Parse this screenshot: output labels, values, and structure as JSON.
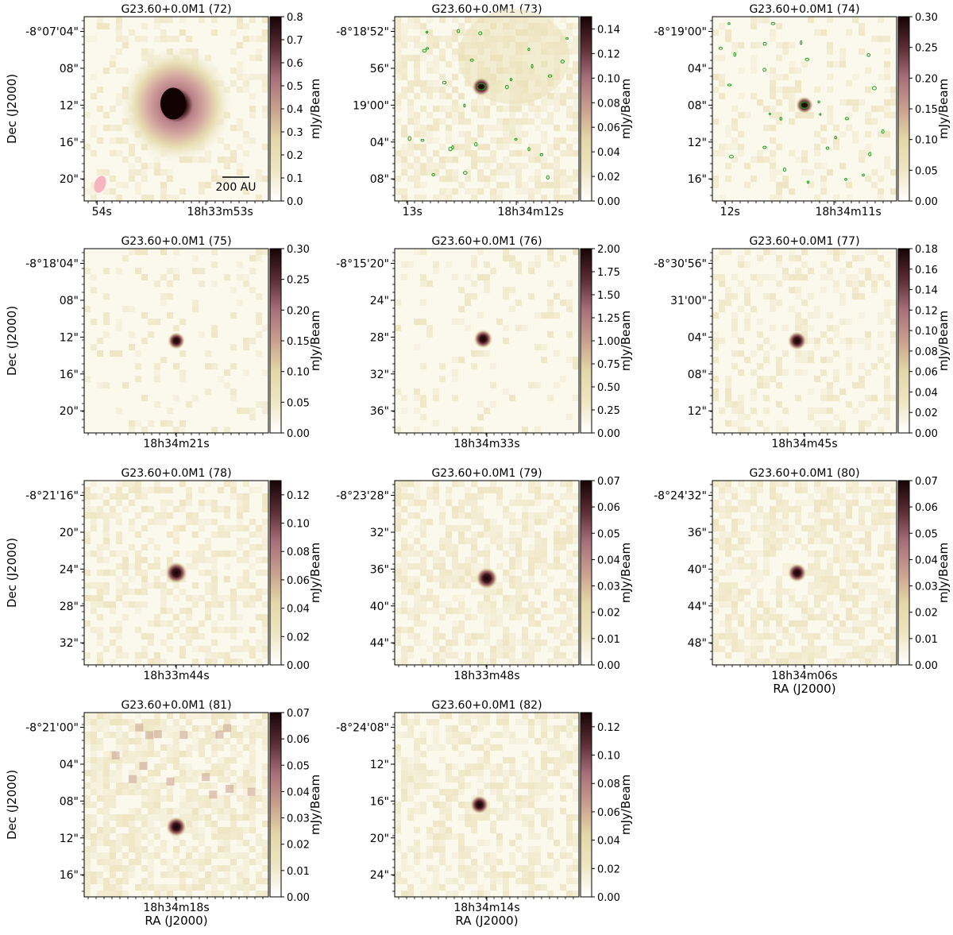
{
  "figure": {
    "colormap": {
      "stops": [
        "#ffffff",
        "#eee6c3",
        "#e4d8a8",
        "#c9a08e",
        "#a8707a",
        "#5a2c34",
        "#170404"
      ]
    },
    "contour_color": "#1a9a1a",
    "beam_color": "#f6b3c0"
  },
  "chart_data": [
    {
      "type": "heatmap",
      "title": "G23.60+0.0M1 (72)",
      "cbar_label": "mJy/Beam",
      "cbar_ticks": [
        "0.0",
        "0.1",
        "0.2",
        "0.3",
        "0.4",
        "0.5",
        "0.6",
        "0.7",
        "0.8"
      ],
      "cbar_max": 0.8,
      "ylabel": "Dec (J2000)",
      "xlabel": "",
      "ytick_labels": [
        "-8°07'04\"",
        "08\"",
        "12\"",
        "16\"",
        "20\""
      ],
      "xtick_labels": [
        "54s",
        "18h33m53s"
      ],
      "source": {
        "peak": 0.8,
        "extended": true
      },
      "scalebar": "200 AU",
      "beam": true,
      "contours": false
    },
    {
      "type": "heatmap",
      "title": "G23.60+0.0M1 (73)",
      "cbar_label": "mJy/Beam",
      "cbar_ticks": [
        "0.00",
        "0.02",
        "0.04",
        "0.06",
        "0.08",
        "0.10",
        "0.12",
        "0.14"
      ],
      "cbar_max": 0.15,
      "ylabel": "",
      "xlabel": "",
      "ytick_labels": [
        "-8°18'52\"",
        "56\"",
        "19'00\"",
        "04\"",
        "08\""
      ],
      "xtick_labels": [
        "13s",
        "18h34m12s"
      ],
      "source": {
        "peak": 0.15,
        "extended": false
      },
      "contours": true
    },
    {
      "type": "heatmap",
      "title": "G23.60+0.0M1 (74)",
      "cbar_label": "mJy/Beam",
      "cbar_ticks": [
        "0.00",
        "0.05",
        "0.10",
        "0.15",
        "0.20",
        "0.25",
        "0.30"
      ],
      "cbar_max": 0.3,
      "ylabel": "",
      "xlabel": "",
      "ytick_labels": [
        "-8°19'00\"",
        "04\"",
        "08\"",
        "12\"",
        "16\""
      ],
      "xtick_labels": [
        "12s",
        "18h34m11s"
      ],
      "source": {
        "peak": 0.2,
        "extended": false
      },
      "contours": true
    },
    {
      "type": "heatmap",
      "title": "G23.60+0.0M1 (75)",
      "cbar_label": "mJy/Beam",
      "cbar_ticks": [
        "0.00",
        "0.05",
        "0.10",
        "0.15",
        "0.20",
        "0.25",
        "0.30"
      ],
      "cbar_max": 0.3,
      "ylabel": "Dec (J2000)",
      "xlabel": "",
      "ytick_labels": [
        "-8°18'04\"",
        "08\"",
        "12\"",
        "16\"",
        "20\""
      ],
      "xtick_labels": [
        "18h34m21s"
      ],
      "source": {
        "peak": 0.3,
        "extended": false
      }
    },
    {
      "type": "heatmap",
      "title": "G23.60+0.0M1 (76)",
      "cbar_label": "mJy/Beam",
      "cbar_ticks": [
        "0.00",
        "0.25",
        "0.50",
        "0.75",
        "1.00",
        "1.25",
        "1.50",
        "1.75",
        "2.00"
      ],
      "cbar_max": 2.0,
      "ylabel": "",
      "xlabel": "",
      "ytick_labels": [
        "-8°15'20\"",
        "24\"",
        "28\"",
        "32\"",
        "36\""
      ],
      "xtick_labels": [
        "18h34m33s"
      ],
      "source": {
        "peak": 2.0,
        "extended": false
      }
    },
    {
      "type": "heatmap",
      "title": "G23.60+0.0M1 (77)",
      "cbar_label": "mJy/Beam",
      "cbar_ticks": [
        "0.00",
        "0.02",
        "0.04",
        "0.06",
        "0.08",
        "0.10",
        "0.12",
        "0.14",
        "0.16",
        "0.18"
      ],
      "cbar_max": 0.18,
      "ylabel": "",
      "xlabel": "",
      "ytick_labels": [
        "-8°30'56\"",
        "31'00\"",
        "04\"",
        "08\"",
        "12\""
      ],
      "xtick_labels": [
        "18h34m45s"
      ],
      "source": {
        "peak": 0.18,
        "extended": false
      }
    },
    {
      "type": "heatmap",
      "title": "G23.60+0.0M1 (78)",
      "cbar_label": "mJy/Beam",
      "cbar_ticks": [
        "0.00",
        "0.02",
        "0.04",
        "0.06",
        "0.08",
        "0.10",
        "0.12"
      ],
      "cbar_max": 0.13,
      "ylabel": "Dec (J2000)",
      "xlabel": "",
      "ytick_labels": [
        "-8°21'16\"",
        "20\"",
        "24\"",
        "28\"",
        "32\""
      ],
      "xtick_labels": [
        "18h33m44s"
      ],
      "source": {
        "peak": 0.13,
        "extended": false
      }
    },
    {
      "type": "heatmap",
      "title": "G23.60+0.0M1 (79)",
      "cbar_label": "mJy/Beam",
      "cbar_ticks": [
        "0.00",
        "0.01",
        "0.02",
        "0.03",
        "0.04",
        "0.05",
        "0.06",
        "0.07"
      ],
      "cbar_max": 0.07,
      "ylabel": "",
      "xlabel": "",
      "ytick_labels": [
        "-8°23'28\"",
        "32\"",
        "36\"",
        "40\"",
        "44\""
      ],
      "xtick_labels": [
        "18h33m48s"
      ],
      "source": {
        "peak": 0.07,
        "extended": false
      }
    },
    {
      "type": "heatmap",
      "title": "G23.60+0.0M1 (80)",
      "cbar_label": "mJy/Beam",
      "cbar_ticks": [
        "0.00",
        "0.01",
        "0.02",
        "0.03",
        "0.04",
        "0.05",
        "0.06",
        "0.07"
      ],
      "cbar_max": 0.07,
      "ylabel": "",
      "xlabel": "RA (J2000)",
      "ytick_labels": [
        "-8°24'32\"",
        "36\"",
        "40\"",
        "44\"",
        "48\""
      ],
      "xtick_labels": [
        "18h34m06s"
      ],
      "source": {
        "peak": 0.07,
        "extended": false
      }
    },
    {
      "type": "heatmap",
      "title": "G23.60+0.0M1 (81)",
      "cbar_label": "mJy/Beam",
      "cbar_ticks": [
        "0.00",
        "0.01",
        "0.02",
        "0.03",
        "0.04",
        "0.05",
        "0.06",
        "0.07"
      ],
      "cbar_max": 0.07,
      "ylabel": "Dec (J2000)",
      "xlabel": "RA (J2000)",
      "ytick_labels": [
        "-8°21'00\"",
        "04\"",
        "08\"",
        "12\"",
        "16\""
      ],
      "xtick_labels": [
        "18h34m18s"
      ],
      "source": {
        "peak": 0.07,
        "extended": false
      }
    },
    {
      "type": "heatmap",
      "title": "G23.60+0.0M1 (82)",
      "cbar_label": "mJy/Beam",
      "cbar_ticks": [
        "0.00",
        "0.02",
        "0.04",
        "0.06",
        "0.08",
        "0.10",
        "0.12"
      ],
      "cbar_max": 0.13,
      "ylabel": "",
      "xlabel": "RA (J2000)",
      "ytick_labels": [
        "-8°24'08\"",
        "12\"",
        "16\"",
        "20\"",
        "24\""
      ],
      "xtick_labels": [
        "18h34m14s"
      ],
      "source": {
        "peak": 0.13,
        "extended": false
      }
    }
  ]
}
